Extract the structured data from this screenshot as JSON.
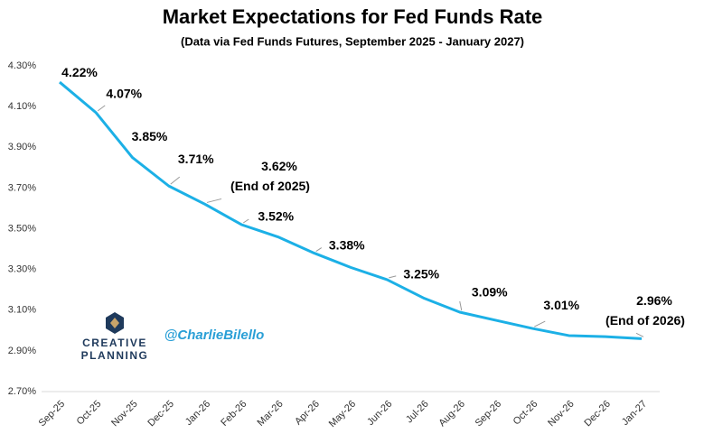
{
  "chart_data": {
    "type": "line",
    "title": "Market Expectations for Fed Funds Rate",
    "subtitle": "(Data via Fed Funds Futures, September 2025 - January 2027)",
    "categories": [
      "Sep-25",
      "Oct-25",
      "Nov-25",
      "Dec-25",
      "Jan-26",
      "Feb-26",
      "Mar-26",
      "Apr-26",
      "May-26",
      "Jun-26",
      "Jul-26",
      "Aug-26",
      "Sep-26",
      "Oct-26",
      "Nov-26",
      "Dec-26",
      "Jan-27"
    ],
    "values": [
      4.22,
      4.07,
      3.85,
      3.71,
      3.62,
      3.52,
      3.46,
      3.38,
      3.31,
      3.25,
      3.16,
      3.09,
      3.05,
      3.01,
      2.975,
      2.97,
      2.96
    ],
    "value_labels": [
      "4.22%",
      "4.07%",
      "3.85%",
      "3.71%",
      "3.62%",
      "3.52%",
      null,
      "3.38%",
      null,
      "3.25%",
      null,
      "3.09%",
      null,
      "3.01%",
      null,
      null,
      "2.96%"
    ],
    "notes": [
      null,
      null,
      null,
      null,
      "(End of 2025)",
      null,
      null,
      null,
      null,
      null,
      null,
      null,
      null,
      null,
      null,
      null,
      "(End of 2026)"
    ],
    "color": "#1cb0e6",
    "ylim": [
      2.7,
      4.3
    ],
    "yticks": [
      {
        "value": 2.7,
        "label": "2.70%"
      },
      {
        "value": 2.9,
        "label": "2.90%"
      },
      {
        "value": 3.1,
        "label": "3.10%"
      },
      {
        "value": 3.3,
        "label": "3.30%"
      },
      {
        "value": 3.5,
        "label": "3.50%"
      },
      {
        "value": 3.7,
        "label": "3.70%"
      },
      {
        "value": 3.9,
        "label": "3.90%"
      },
      {
        "value": 4.1,
        "label": "4.10%"
      },
      {
        "value": 4.3,
        "label": "4.30%"
      }
    ],
    "grid": false,
    "watermark": "@CharlieBilello",
    "logo": [
      "CREATIVE",
      "PLANNING"
    ]
  }
}
